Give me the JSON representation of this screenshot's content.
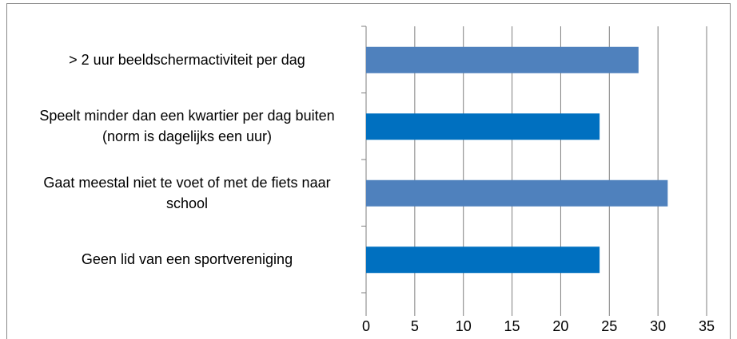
{
  "chart_data": {
    "type": "bar",
    "orientation": "horizontal",
    "categories": [
      "> 2 uur beeldschermactiviteit per dag",
      "Speelt minder dan een kwartier per dag buiten (norm is dagelijks een uur)",
      "Gaat meestal niet te voet of met de fiets naar school",
      "Geen lid van een sportvereniging"
    ],
    "values": [
      28,
      24,
      31,
      24
    ],
    "colors": [
      "#4f81bd",
      "#0070c0",
      "#4f81bd",
      "#0070c0"
    ],
    "xlim": [
      0,
      35
    ],
    "xticks": [
      0,
      5,
      10,
      15,
      20,
      25,
      30,
      35
    ],
    "grid": true
  }
}
